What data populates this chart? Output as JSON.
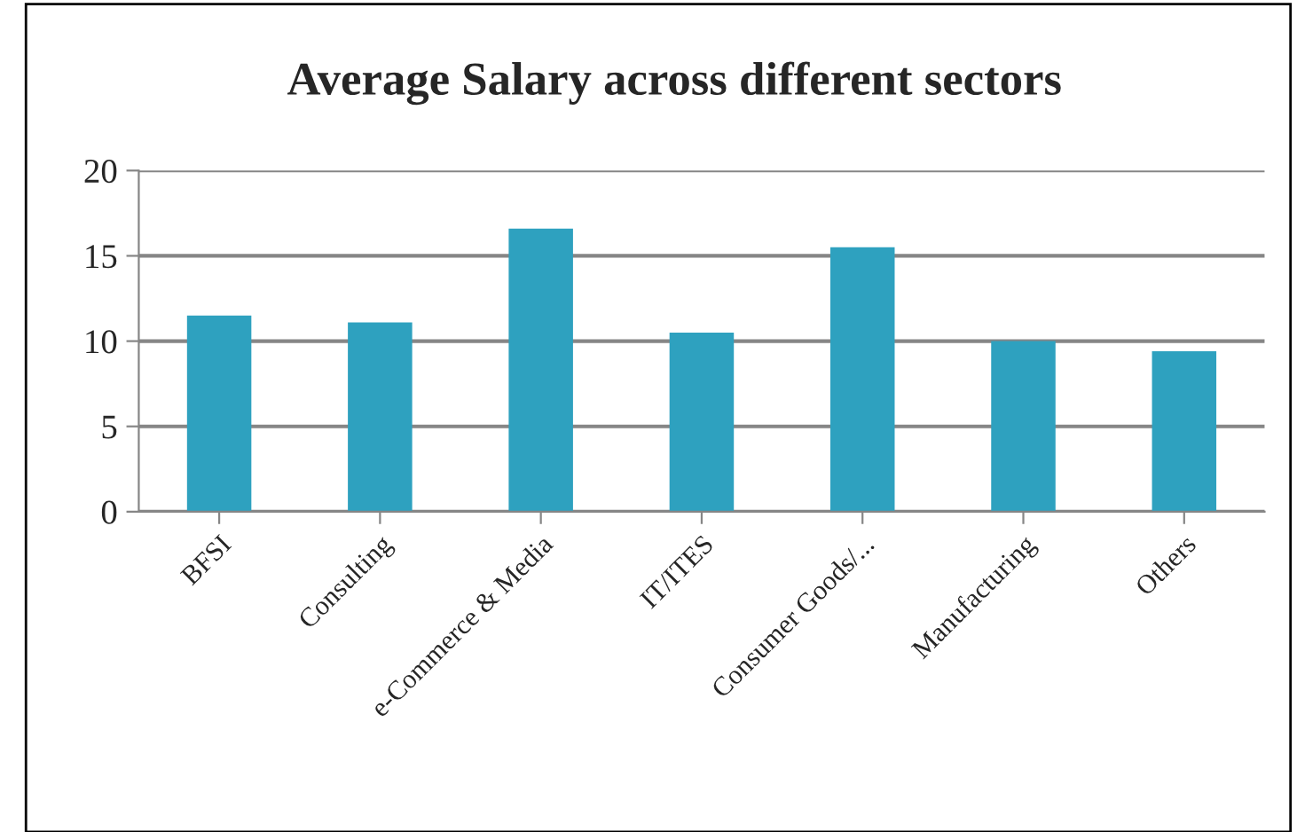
{
  "chart_data": {
    "type": "bar",
    "title": "Average Salary across different sectors",
    "categories": [
      "BFSI",
      "Consulting",
      "e-Commerce & Media",
      "IT/ITES",
      "Consumer Goods/...",
      "Manufacturing",
      "Others"
    ],
    "values": [
      11.5,
      11.1,
      16.6,
      10.5,
      15.5,
      10.0,
      9.4
    ],
    "color": "#2ea1bf",
    "ylim": [
      0,
      20
    ],
    "yticks": [
      0,
      5,
      10,
      15,
      20
    ],
    "grid": "y",
    "legend": false
  }
}
